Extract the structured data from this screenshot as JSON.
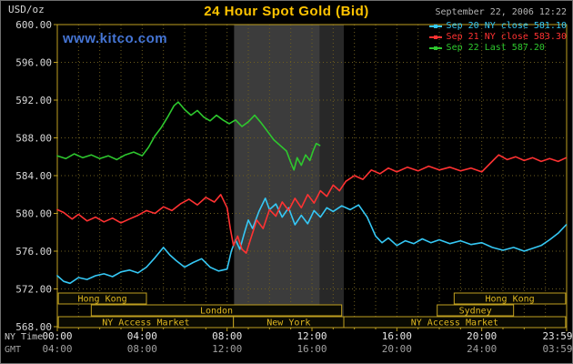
{
  "header": {
    "title": "24 Hour Spot Gold (Bid)",
    "datetime": "September 22, 2006 12:22",
    "watermark": "www.kitco.com"
  },
  "axes": {
    "y_unit": "USD/oz",
    "row1_label": "NY Time",
    "row2_label": "GMT",
    "y_ticks": [
      {
        "v": 600,
        "label": "600.00"
      },
      {
        "v": 596,
        "label": "596.00"
      },
      {
        "v": 592,
        "label": "592.00"
      },
      {
        "v": 588,
        "label": "588.00"
      },
      {
        "v": 584,
        "label": "584.00"
      },
      {
        "v": 580,
        "label": "580.00"
      },
      {
        "v": 576,
        "label": "576.00"
      },
      {
        "v": 572,
        "label": "572.00"
      },
      {
        "v": 568,
        "label": "568.00"
      }
    ],
    "x_ticks": [
      {
        "h": 0,
        "ny": "00:00",
        "gmt": "04:00"
      },
      {
        "h": 4,
        "ny": "04:00",
        "gmt": "08:00"
      },
      {
        "h": 8,
        "ny": "08:00",
        "gmt": "12:00"
      },
      {
        "h": 12,
        "ny": "12:00",
        "gmt": "16:00"
      },
      {
        "h": 16,
        "ny": "16:00",
        "gmt": "20:00"
      },
      {
        "h": 20,
        "ny": "20:00",
        "gmt": "24:00"
      },
      {
        "h": 23.98,
        "ny": "23:59",
        "gmt": "03:59"
      }
    ]
  },
  "legend": [
    {
      "label": "Sep 20 NY close 581.10",
      "color": "#35c8f5"
    },
    {
      "label": "Sep 21 NY close 583.30",
      "color": "#ff3232"
    },
    {
      "label": "Sep 22 Last 587.20",
      "color": "#2ec82e"
    }
  ],
  "sessions": [
    {
      "row": 0,
      "label": "Hong Kong",
      "start": 0.05,
      "end": 4.2
    },
    {
      "row": 0,
      "label": "Hong Kong",
      "start": 18.7,
      "end": 23.95
    },
    {
      "row": 1,
      "label": "London",
      "start": 1.6,
      "end": 13.4
    },
    {
      "row": 1,
      "label": "Sydney",
      "start": 17.9,
      "end": 21.5
    },
    {
      "row": 2,
      "label": "NY Access Market",
      "start": 0.05,
      "end": 8.3
    },
    {
      "row": 2,
      "label": "New York",
      "start": 8.3,
      "end": 13.5
    },
    {
      "row": 2,
      "label": "NY Access Market",
      "start": 13.5,
      "end": 23.95
    }
  ],
  "colors": {
    "gold": "#c0a020",
    "grid": "#6e5e1e",
    "band_light": "#3c3c3c",
    "band_dark": "#282828",
    "box_fill": "#0a0a02",
    "box_text": "#e0b820",
    "y_tick_label": "#d8d8d8",
    "x_tick_label": "#e6e6e6",
    "gmt_tick_label": "#a0a0a0"
  },
  "chart_data": {
    "type": "line",
    "title": "24 Hour Spot Gold (Bid)",
    "xlabel": "NY Time / GMT",
    "ylabel": "USD/oz",
    "x_unit": "hours, NY time",
    "xlim": [
      0,
      24
    ],
    "ylim": [
      568,
      600
    ],
    "grid": true,
    "legend_position": "top-right",
    "bands": [
      {
        "name": "ny-session-elapsed",
        "start": 8.33,
        "end": 12.37,
        "color": "#3c3c3c"
      },
      {
        "name": "ny-session-remaining",
        "start": 12.37,
        "end": 13.5,
        "color": "#282828"
      }
    ],
    "series": [
      {
        "name": "Sep 20",
        "legend": "Sep 20 NY close 581.10",
        "close": 581.1,
        "color": "#35c8f5",
        "points": [
          [
            0,
            573.4
          ],
          [
            0.3,
            572.8
          ],
          [
            0.6,
            572.6
          ],
          [
            1,
            573.2
          ],
          [
            1.4,
            573.0
          ],
          [
            1.8,
            573.4
          ],
          [
            2.2,
            573.6
          ],
          [
            2.6,
            573.3
          ],
          [
            3,
            573.8
          ],
          [
            3.4,
            574.0
          ],
          [
            3.8,
            573.7
          ],
          [
            4.2,
            574.3
          ],
          [
            4.6,
            575.3
          ],
          [
            5,
            576.4
          ],
          [
            5.3,
            575.6
          ],
          [
            5.6,
            575.0
          ],
          [
            6,
            574.3
          ],
          [
            6.4,
            574.8
          ],
          [
            6.8,
            575.2
          ],
          [
            7.2,
            574.3
          ],
          [
            7.6,
            573.9
          ],
          [
            8,
            574.1
          ],
          [
            8.2,
            576.0
          ],
          [
            8.4,
            577.2
          ],
          [
            8.6,
            576.2
          ],
          [
            8.8,
            577.8
          ],
          [
            9,
            579.3
          ],
          [
            9.2,
            578.4
          ],
          [
            9.5,
            580.2
          ],
          [
            9.8,
            581.6
          ],
          [
            10,
            580.4
          ],
          [
            10.3,
            581.0
          ],
          [
            10.6,
            579.6
          ],
          [
            10.9,
            580.6
          ],
          [
            11.2,
            578.8
          ],
          [
            11.5,
            579.8
          ],
          [
            11.8,
            578.9
          ],
          [
            12.1,
            580.3
          ],
          [
            12.4,
            579.6
          ],
          [
            12.7,
            580.6
          ],
          [
            13,
            580.2
          ],
          [
            13.4,
            580.8
          ],
          [
            13.8,
            580.4
          ],
          [
            14.2,
            580.9
          ],
          [
            14.6,
            579.6
          ],
          [
            15,
            577.6
          ],
          [
            15.3,
            576.9
          ],
          [
            15.6,
            577.4
          ],
          [
            16,
            576.6
          ],
          [
            16.4,
            577.1
          ],
          [
            16.8,
            576.8
          ],
          [
            17.2,
            577.3
          ],
          [
            17.6,
            576.9
          ],
          [
            18,
            577.2
          ],
          [
            18.5,
            576.8
          ],
          [
            19,
            577.1
          ],
          [
            19.5,
            576.7
          ],
          [
            20,
            576.9
          ],
          [
            20.5,
            576.4
          ],
          [
            21,
            576.1
          ],
          [
            21.5,
            576.4
          ],
          [
            22,
            576.0
          ],
          [
            22.4,
            576.3
          ],
          [
            22.8,
            576.6
          ],
          [
            23.2,
            577.2
          ],
          [
            23.6,
            577.9
          ],
          [
            23.98,
            578.8
          ]
        ]
      },
      {
        "name": "Sep 21",
        "legend": "Sep 21 NY close 583.30",
        "close": 583.3,
        "color": "#ff3232",
        "points": [
          [
            0,
            580.4
          ],
          [
            0.3,
            580.1
          ],
          [
            0.7,
            579.4
          ],
          [
            1,
            579.9
          ],
          [
            1.4,
            579.2
          ],
          [
            1.8,
            579.6
          ],
          [
            2.2,
            579.1
          ],
          [
            2.6,
            579.5
          ],
          [
            3,
            579.0
          ],
          [
            3.4,
            579.4
          ],
          [
            3.8,
            579.8
          ],
          [
            4.2,
            580.3
          ],
          [
            4.6,
            580.0
          ],
          [
            5,
            580.7
          ],
          [
            5.4,
            580.3
          ],
          [
            5.8,
            581.0
          ],
          [
            6.2,
            581.5
          ],
          [
            6.6,
            580.9
          ],
          [
            7,
            581.7
          ],
          [
            7.4,
            581.2
          ],
          [
            7.7,
            582.0
          ],
          [
            8,
            580.6
          ],
          [
            8.15,
            578.4
          ],
          [
            8.3,
            576.6
          ],
          [
            8.5,
            577.6
          ],
          [
            8.7,
            576.2
          ],
          [
            8.9,
            575.8
          ],
          [
            9.1,
            577.2
          ],
          [
            9.4,
            579.3
          ],
          [
            9.7,
            578.4
          ],
          [
            10,
            580.4
          ],
          [
            10.3,
            579.7
          ],
          [
            10.6,
            581.2
          ],
          [
            10.9,
            580.3
          ],
          [
            11.2,
            581.6
          ],
          [
            11.5,
            580.6
          ],
          [
            11.8,
            582.0
          ],
          [
            12.1,
            581.1
          ],
          [
            12.4,
            582.4
          ],
          [
            12.7,
            581.8
          ],
          [
            13,
            583.0
          ],
          [
            13.3,
            582.4
          ],
          [
            13.6,
            583.4
          ],
          [
            14,
            584.0
          ],
          [
            14.4,
            583.6
          ],
          [
            14.8,
            584.6
          ],
          [
            15.2,
            584.2
          ],
          [
            15.6,
            584.8
          ],
          [
            16,
            584.4
          ],
          [
            16.5,
            584.9
          ],
          [
            17,
            584.5
          ],
          [
            17.5,
            585.0
          ],
          [
            18,
            584.6
          ],
          [
            18.5,
            584.9
          ],
          [
            19,
            584.5
          ],
          [
            19.5,
            584.8
          ],
          [
            20,
            584.4
          ],
          [
            20.4,
            585.3
          ],
          [
            20.8,
            586.2
          ],
          [
            21.2,
            585.7
          ],
          [
            21.6,
            586.0
          ],
          [
            22,
            585.6
          ],
          [
            22.4,
            585.9
          ],
          [
            22.8,
            585.5
          ],
          [
            23.2,
            585.8
          ],
          [
            23.6,
            585.5
          ],
          [
            23.98,
            585.9
          ]
        ]
      },
      {
        "name": "Sep 22",
        "legend": "Sep 22 Last 587.20",
        "last": 587.2,
        "color": "#2ec82e",
        "points": [
          [
            0,
            586.1
          ],
          [
            0.4,
            585.8
          ],
          [
            0.8,
            586.3
          ],
          [
            1.2,
            585.9
          ],
          [
            1.6,
            586.2
          ],
          [
            2,
            585.8
          ],
          [
            2.4,
            586.1
          ],
          [
            2.8,
            585.7
          ],
          [
            3.2,
            586.2
          ],
          [
            3.6,
            586.5
          ],
          [
            4,
            586.1
          ],
          [
            4.3,
            587.0
          ],
          [
            4.6,
            588.2
          ],
          [
            4.9,
            589.1
          ],
          [
            5.2,
            590.2
          ],
          [
            5.5,
            591.4
          ],
          [
            5.7,
            591.8
          ],
          [
            6,
            591.0
          ],
          [
            6.3,
            590.4
          ],
          [
            6.6,
            590.9
          ],
          [
            6.9,
            590.2
          ],
          [
            7.2,
            589.8
          ],
          [
            7.5,
            590.4
          ],
          [
            7.8,
            589.9
          ],
          [
            8.1,
            589.5
          ],
          [
            8.4,
            589.9
          ],
          [
            8.7,
            589.2
          ],
          [
            9,
            589.7
          ],
          [
            9.3,
            590.4
          ],
          [
            9.6,
            589.6
          ],
          [
            9.9,
            588.7
          ],
          [
            10.2,
            587.8
          ],
          [
            10.5,
            587.2
          ],
          [
            10.8,
            586.6
          ],
          [
            11,
            585.4
          ],
          [
            11.15,
            584.6
          ],
          [
            11.3,
            585.9
          ],
          [
            11.5,
            585.1
          ],
          [
            11.7,
            586.2
          ],
          [
            11.9,
            585.6
          ],
          [
            12.05,
            586.6
          ],
          [
            12.2,
            587.4
          ],
          [
            12.37,
            587.2
          ]
        ]
      }
    ]
  }
}
